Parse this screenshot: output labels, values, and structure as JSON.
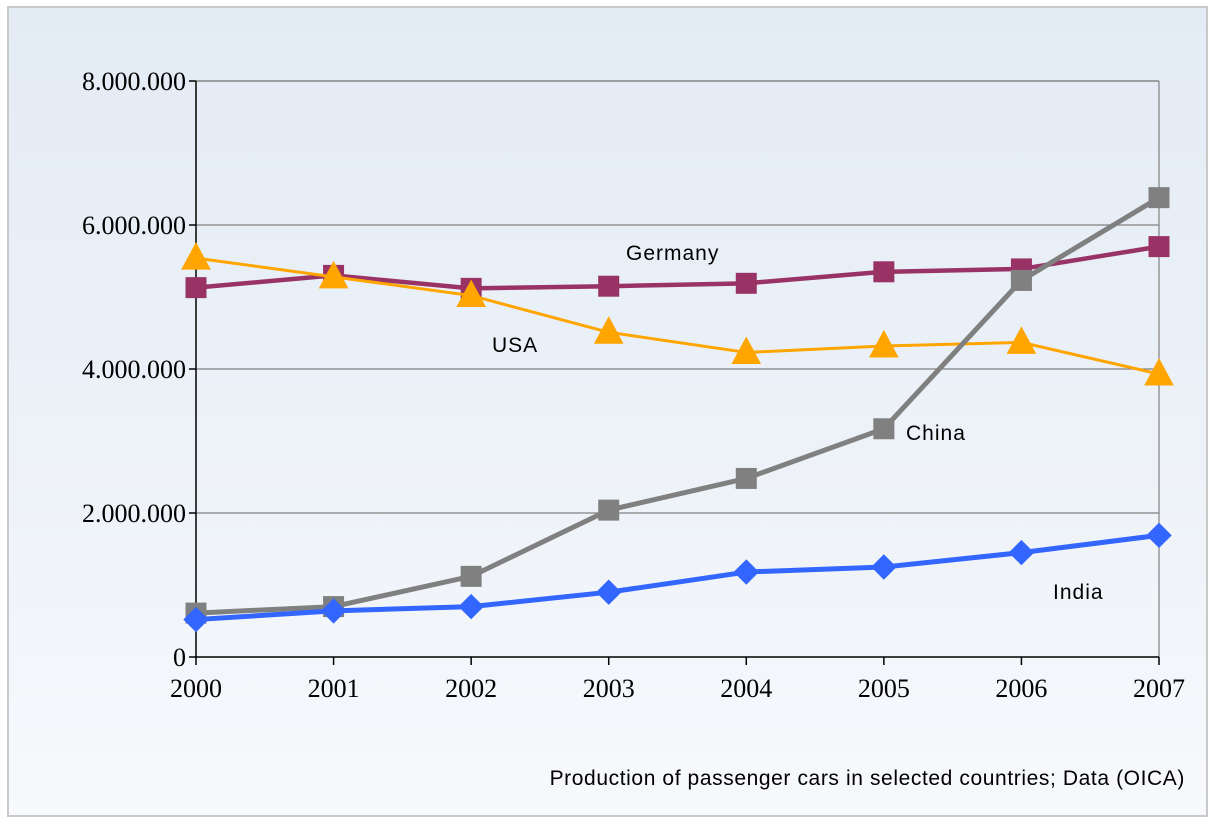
{
  "chart_data": {
    "type": "line",
    "categories": [
      "2000",
      "2001",
      "2002",
      "2003",
      "2004",
      "2005",
      "2006",
      "2007"
    ],
    "ylim": [
      0,
      8000000
    ],
    "yticks": [
      0,
      2000000,
      4000000,
      6000000,
      8000000
    ],
    "ytick_labels": [
      "0",
      "2.000.000",
      "4.000.000",
      "6.000.000",
      "8.000.000"
    ],
    "grid": true,
    "caption": "Production of passenger cars in selected countries; Data (OICA)",
    "series": [
      {
        "name": "Germany",
        "color": "#993366",
        "marker": "square",
        "values": [
          5130000,
          5300000,
          5120000,
          5150000,
          5190000,
          5350000,
          5390000,
          5700000
        ]
      },
      {
        "name": "USA",
        "color": "#ffa500",
        "marker": "triangle",
        "values": [
          5540000,
          5280000,
          5020000,
          4510000,
          4230000,
          4320000,
          4370000,
          3930000
        ]
      },
      {
        "name": "China",
        "color": "#808080",
        "marker": "square",
        "values": [
          610000,
          700000,
          1120000,
          2040000,
          2480000,
          3170000,
          5230000,
          6380000
        ]
      },
      {
        "name": "India",
        "color": "#3366ff",
        "marker": "diamond",
        "values": [
          520000,
          640000,
          700000,
          900000,
          1180000,
          1250000,
          1450000,
          1690000
        ]
      }
    ]
  }
}
